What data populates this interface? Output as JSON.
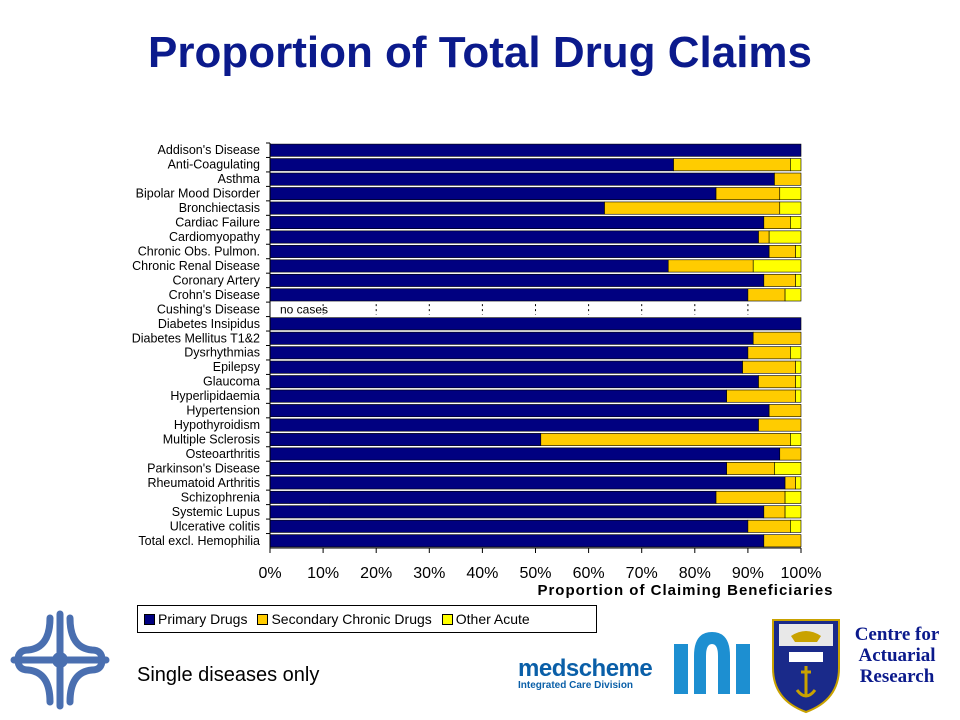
{
  "title": "Proportion of Total Drug Claims",
  "footnote": "Single diseases only",
  "cfar_lines": [
    "Centre for",
    "Actuarial",
    "Research"
  ],
  "medscheme": {
    "name": "medscheme",
    "division": "Integrated Care Division"
  },
  "colors": {
    "primary": "#000080",
    "secondary": "#ffcc00",
    "other": "#ffff00",
    "title": "#0b1a8c",
    "background_band": "#ffffff"
  },
  "chart_data": {
    "type": "bar",
    "orientation": "horizontal",
    "stacked": true,
    "xlabel": "Proportion of Claiming Beneficiaries",
    "xlim": [
      0,
      100
    ],
    "xticks": [
      "0%",
      "10%",
      "20%",
      "30%",
      "40%",
      "50%",
      "60%",
      "70%",
      "80%",
      "90%",
      "100%"
    ],
    "legend_position": "bottom-left",
    "categories": [
      "Addison's Disease",
      "Anti-Coagulating",
      "Asthma",
      "Bipolar Mood Disorder",
      "Bronchiectasis",
      "Cardiac Failure",
      "Cardiomyopathy",
      "Chronic Obs. Pulmon.",
      "Chronic Renal Disease",
      "Coronary Artery",
      "Crohn's Disease",
      "Cushing's Disease",
      "Diabetes Insipidus",
      "Diabetes Mellitus T1&2",
      "Dysrhythmias",
      "Epilepsy",
      "Glaucoma",
      "Hyperlipidaemia",
      "Hypertension",
      "Hypothyroidism",
      "Multiple Sclerosis",
      "Osteoarthritis",
      "Parkinson's Disease",
      "Rheumatoid Arthritis",
      "Schizophrenia",
      "Systemic Lupus",
      "Ulcerative colitis",
      "Total excl. Hemophilia"
    ],
    "series": [
      {
        "name": "Primary Drugs",
        "values": [
          100,
          76,
          95,
          84,
          63,
          93,
          92,
          94,
          75,
          93,
          90,
          0,
          100,
          91,
          90,
          89,
          92,
          86,
          94,
          92,
          51,
          96,
          86,
          97,
          84,
          93,
          90,
          93
        ]
      },
      {
        "name": "Secondary Chronic Drugs",
        "values": [
          0,
          22,
          5,
          12,
          33,
          5,
          2,
          5,
          16,
          6,
          7,
          0,
          0,
          9,
          8,
          10,
          7,
          13,
          6,
          8,
          47,
          4,
          9,
          2,
          13,
          4,
          8,
          7
        ]
      },
      {
        "name": "Other Acute",
        "values": [
          0,
          2,
          0,
          4,
          4,
          2,
          6,
          1,
          9,
          1,
          3,
          0,
          0,
          0,
          2,
          1,
          1,
          1,
          0,
          0,
          2,
          0,
          5,
          1,
          3,
          3,
          2,
          0
        ]
      }
    ],
    "annotations": [
      {
        "category": "Cushing's Disease",
        "text": "no cases"
      }
    ]
  }
}
